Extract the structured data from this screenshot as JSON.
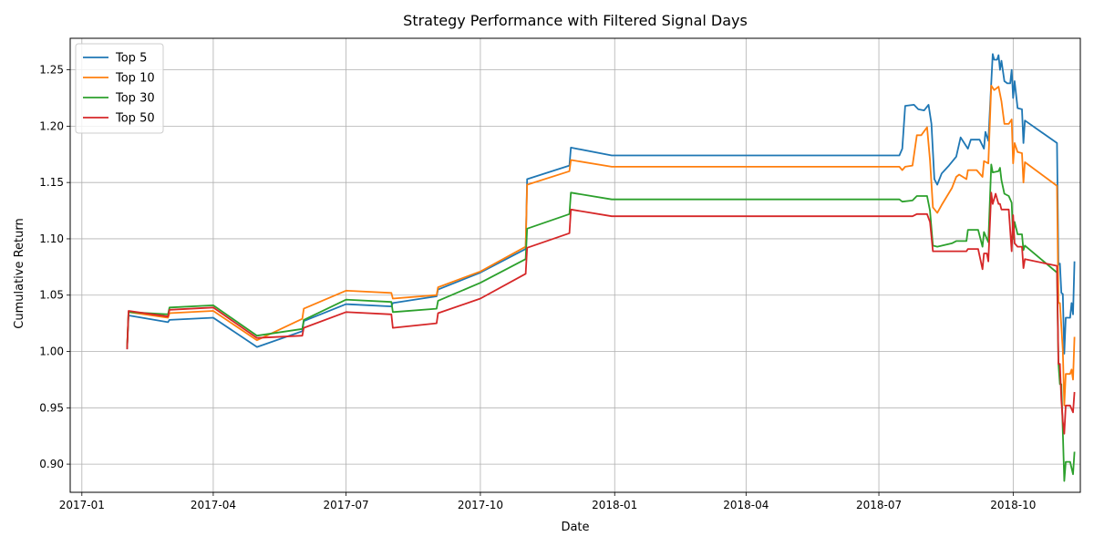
{
  "chart_data": {
    "type": "line",
    "title": "Strategy Performance with Filtered Signal Days",
    "xlabel": "Date",
    "ylabel": "Cumulative Return",
    "xlim": [
      "2016-12-24",
      "2018-11-16"
    ],
    "ylim": [
      0.875,
      1.278
    ],
    "grid": true,
    "legend_position": "top-left",
    "x_ticks": [
      "2017-01",
      "2017-04",
      "2017-07",
      "2017-10",
      "2018-01",
      "2018-04",
      "2018-07",
      "2018-10"
    ],
    "y_ticks": [
      0.9,
      0.95,
      1.0,
      1.05,
      1.1,
      1.15,
      1.2,
      1.25
    ],
    "series": [
      {
        "name": "Top 5",
        "color": "#1f77b4",
        "points": [
          [
            "2017-02-01",
            1.002
          ],
          [
            "2017-02-02",
            1.032
          ],
          [
            "2017-03-01",
            1.026
          ],
          [
            "2017-03-02",
            1.028
          ],
          [
            "2017-04-01",
            1.03
          ],
          [
            "2017-05-01",
            1.004
          ],
          [
            "2017-06-01",
            1.018
          ],
          [
            "2017-06-02",
            1.027
          ],
          [
            "2017-07-01",
            1.042
          ],
          [
            "2017-08-01",
            1.04
          ],
          [
            "2017-08-02",
            1.043
          ],
          [
            "2017-09-01",
            1.049
          ],
          [
            "2017-09-02",
            1.055
          ],
          [
            "2017-10-01",
            1.07
          ],
          [
            "2017-11-01",
            1.091
          ],
          [
            "2017-11-02",
            1.153
          ],
          [
            "2017-12-01",
            1.165
          ],
          [
            "2017-12-02",
            1.181
          ],
          [
            "2017-12-30",
            1.174
          ],
          [
            "2018-07-15",
            1.174
          ],
          [
            "2018-07-17",
            1.18
          ],
          [
            "2018-07-19",
            1.218
          ],
          [
            "2018-07-25",
            1.219
          ],
          [
            "2018-07-28",
            1.215
          ],
          [
            "2018-08-01",
            1.214
          ],
          [
            "2018-08-04",
            1.219
          ],
          [
            "2018-08-06",
            1.202
          ],
          [
            "2018-08-08",
            1.153
          ],
          [
            "2018-08-10",
            1.148
          ],
          [
            "2018-08-13",
            1.158
          ],
          [
            "2018-08-18",
            1.165
          ],
          [
            "2018-08-23",
            1.173
          ],
          [
            "2018-08-26",
            1.19
          ],
          [
            "2018-08-31",
            1.18
          ],
          [
            "2018-09-02",
            1.188
          ],
          [
            "2018-09-08",
            1.188
          ],
          [
            "2018-09-11",
            1.18
          ],
          [
            "2018-09-12",
            1.195
          ],
          [
            "2018-09-14",
            1.187
          ],
          [
            "2018-09-17",
            1.264
          ],
          [
            "2018-09-18",
            1.259
          ],
          [
            "2018-09-20",
            1.259
          ],
          [
            "2018-09-21",
            1.263
          ],
          [
            "2018-09-22",
            1.25
          ],
          [
            "2018-09-23",
            1.258
          ],
          [
            "2018-09-25",
            1.24
          ],
          [
            "2018-09-27",
            1.238
          ],
          [
            "2018-09-29",
            1.238
          ],
          [
            "2018-09-30",
            1.25
          ],
          [
            "2018-10-01",
            1.225
          ],
          [
            "2018-10-02",
            1.24
          ],
          [
            "2018-10-04",
            1.216
          ],
          [
            "2018-10-07",
            1.215
          ],
          [
            "2018-10-08",
            1.185
          ],
          [
            "2018-10-09",
            1.205
          ],
          [
            "2018-10-31",
            1.185
          ],
          [
            "2018-11-01",
            1.077
          ],
          [
            "2018-11-02",
            1.078
          ],
          [
            "2018-11-03",
            1.052
          ],
          [
            "2018-11-04",
            1.051
          ],
          [
            "2018-11-05",
            0.998
          ],
          [
            "2018-11-06",
            1.03
          ],
          [
            "2018-11-09",
            1.03
          ],
          [
            "2018-11-10",
            1.043
          ],
          [
            "2018-11-11",
            1.033
          ],
          [
            "2018-11-12",
            1.08
          ]
        ]
      },
      {
        "name": "Top 10",
        "color": "#ff7f0e",
        "points": [
          [
            "2017-02-01",
            1.003
          ],
          [
            "2017-02-02",
            1.035
          ],
          [
            "2017-03-01",
            1.03
          ],
          [
            "2017-03-02",
            1.034
          ],
          [
            "2017-04-01",
            1.036
          ],
          [
            "2017-05-01",
            1.01
          ],
          [
            "2017-06-01",
            1.029
          ],
          [
            "2017-06-02",
            1.038
          ],
          [
            "2017-07-01",
            1.054
          ],
          [
            "2017-08-01",
            1.052
          ],
          [
            "2017-08-02",
            1.047
          ],
          [
            "2017-09-01",
            1.05
          ],
          [
            "2017-09-02",
            1.057
          ],
          [
            "2017-10-01",
            1.071
          ],
          [
            "2017-11-01",
            1.093
          ],
          [
            "2017-11-02",
            1.148
          ],
          [
            "2017-12-01",
            1.16
          ],
          [
            "2017-12-02",
            1.17
          ],
          [
            "2017-12-30",
            1.164
          ],
          [
            "2018-07-15",
            1.164
          ],
          [
            "2018-07-17",
            1.161
          ],
          [
            "2018-07-19",
            1.164
          ],
          [
            "2018-07-24",
            1.165
          ],
          [
            "2018-07-27",
            1.192
          ],
          [
            "2018-07-30",
            1.192
          ],
          [
            "2018-08-03",
            1.199
          ],
          [
            "2018-08-05",
            1.17
          ],
          [
            "2018-08-07",
            1.128
          ],
          [
            "2018-08-10",
            1.123
          ],
          [
            "2018-08-13",
            1.13
          ],
          [
            "2018-08-20",
            1.145
          ],
          [
            "2018-08-23",
            1.155
          ],
          [
            "2018-08-25",
            1.157
          ],
          [
            "2018-08-30",
            1.153
          ],
          [
            "2018-08-31",
            1.161
          ],
          [
            "2018-09-06",
            1.161
          ],
          [
            "2018-09-10",
            1.155
          ],
          [
            "2018-09-11",
            1.169
          ],
          [
            "2018-09-14",
            1.167
          ],
          [
            "2018-09-16",
            1.236
          ],
          [
            "2018-09-18",
            1.232
          ],
          [
            "2018-09-21",
            1.235
          ],
          [
            "2018-09-23",
            1.222
          ],
          [
            "2018-09-25",
            1.202
          ],
          [
            "2018-09-28",
            1.202
          ],
          [
            "2018-09-30",
            1.206
          ],
          [
            "2018-10-01",
            1.167
          ],
          [
            "2018-10-02",
            1.185
          ],
          [
            "2018-10-04",
            1.177
          ],
          [
            "2018-10-07",
            1.176
          ],
          [
            "2018-10-08",
            1.15
          ],
          [
            "2018-10-09",
            1.168
          ],
          [
            "2018-10-31",
            1.147
          ],
          [
            "2018-11-01",
            1.043
          ],
          [
            "2018-11-02",
            1.043
          ],
          [
            "2018-11-04",
            1.001
          ],
          [
            "2018-11-05",
            0.952
          ],
          [
            "2018-11-06",
            0.98
          ],
          [
            "2018-11-09",
            0.98
          ],
          [
            "2018-11-10",
            0.984
          ],
          [
            "2018-11-11",
            0.975
          ],
          [
            "2018-11-12",
            1.013
          ]
        ]
      },
      {
        "name": "Top 30",
        "color": "#2ca02c",
        "points": [
          [
            "2017-02-01",
            1.003
          ],
          [
            "2017-02-02",
            1.035
          ],
          [
            "2017-03-01",
            1.033
          ],
          [
            "2017-03-02",
            1.039
          ],
          [
            "2017-04-01",
            1.041
          ],
          [
            "2017-05-01",
            1.014
          ],
          [
            "2017-06-01",
            1.02
          ],
          [
            "2017-06-02",
            1.028
          ],
          [
            "2017-07-01",
            1.046
          ],
          [
            "2017-08-01",
            1.044
          ],
          [
            "2017-08-02",
            1.035
          ],
          [
            "2017-09-01",
            1.038
          ],
          [
            "2017-09-02",
            1.045
          ],
          [
            "2017-10-01",
            1.061
          ],
          [
            "2017-11-01",
            1.082
          ],
          [
            "2017-11-02",
            1.109
          ],
          [
            "2017-12-01",
            1.122
          ],
          [
            "2017-12-02",
            1.141
          ],
          [
            "2017-12-30",
            1.135
          ],
          [
            "2018-07-15",
            1.135
          ],
          [
            "2018-07-17",
            1.133
          ],
          [
            "2018-07-24",
            1.134
          ],
          [
            "2018-07-27",
            1.138
          ],
          [
            "2018-08-03",
            1.138
          ],
          [
            "2018-08-05",
            1.125
          ],
          [
            "2018-08-07",
            1.094
          ],
          [
            "2018-08-10",
            1.093
          ],
          [
            "2018-08-20",
            1.096
          ],
          [
            "2018-08-23",
            1.098
          ],
          [
            "2018-08-30",
            1.098
          ],
          [
            "2018-08-31",
            1.108
          ],
          [
            "2018-09-07",
            1.108
          ],
          [
            "2018-09-10",
            1.093
          ],
          [
            "2018-09-11",
            1.106
          ],
          [
            "2018-09-14",
            1.097
          ],
          [
            "2018-09-16",
            1.166
          ],
          [
            "2018-09-17",
            1.159
          ],
          [
            "2018-09-21",
            1.16
          ],
          [
            "2018-09-22",
            1.163
          ],
          [
            "2018-09-23",
            1.152
          ],
          [
            "2018-09-25",
            1.14
          ],
          [
            "2018-09-28",
            1.138
          ],
          [
            "2018-09-30",
            1.132
          ],
          [
            "2018-10-01",
            1.1
          ],
          [
            "2018-10-02",
            1.115
          ],
          [
            "2018-10-04",
            1.104
          ],
          [
            "2018-10-07",
            1.104
          ],
          [
            "2018-10-08",
            1.09
          ],
          [
            "2018-10-09",
            1.094
          ],
          [
            "2018-10-31",
            1.07
          ],
          [
            "2018-11-01",
            0.989
          ],
          [
            "2018-11-02",
            0.971
          ],
          [
            "2018-11-03",
            0.971
          ],
          [
            "2018-11-04",
            0.929
          ],
          [
            "2018-11-05",
            0.885
          ],
          [
            "2018-11-06",
            0.902
          ],
          [
            "2018-11-09",
            0.902
          ],
          [
            "2018-11-11",
            0.891
          ],
          [
            "2018-11-12",
            0.911
          ]
        ]
      },
      {
        "name": "Top 50",
        "color": "#d62728",
        "points": [
          [
            "2017-02-01",
            1.002
          ],
          [
            "2017-02-02",
            1.036
          ],
          [
            "2017-03-01",
            1.031
          ],
          [
            "2017-03-02",
            1.037
          ],
          [
            "2017-04-01",
            1.039
          ],
          [
            "2017-05-01",
            1.012
          ],
          [
            "2017-06-01",
            1.014
          ],
          [
            "2017-06-02",
            1.021
          ],
          [
            "2017-07-01",
            1.035
          ],
          [
            "2017-08-01",
            1.033
          ],
          [
            "2017-08-02",
            1.021
          ],
          [
            "2017-09-01",
            1.025
          ],
          [
            "2017-09-02",
            1.034
          ],
          [
            "2017-10-01",
            1.047
          ],
          [
            "2017-11-01",
            1.069
          ],
          [
            "2017-11-02",
            1.092
          ],
          [
            "2017-12-01",
            1.105
          ],
          [
            "2017-12-02",
            1.126
          ],
          [
            "2017-12-30",
            1.12
          ],
          [
            "2018-07-15",
            1.12
          ],
          [
            "2018-07-24",
            1.12
          ],
          [
            "2018-07-27",
            1.122
          ],
          [
            "2018-08-03",
            1.122
          ],
          [
            "2018-08-05",
            1.115
          ],
          [
            "2018-08-07",
            1.089
          ],
          [
            "2018-08-30",
            1.089
          ],
          [
            "2018-08-31",
            1.091
          ],
          [
            "2018-09-07",
            1.091
          ],
          [
            "2018-09-10",
            1.073
          ],
          [
            "2018-09-11",
            1.087
          ],
          [
            "2018-09-13",
            1.087
          ],
          [
            "2018-09-14",
            1.08
          ],
          [
            "2018-09-16",
            1.141
          ],
          [
            "2018-09-17",
            1.131
          ],
          [
            "2018-09-19",
            1.14
          ],
          [
            "2018-09-21",
            1.131
          ],
          [
            "2018-09-22",
            1.131
          ],
          [
            "2018-09-23",
            1.126
          ],
          [
            "2018-09-28",
            1.126
          ],
          [
            "2018-09-30",
            1.089
          ],
          [
            "2018-10-01",
            1.121
          ],
          [
            "2018-10-02",
            1.096
          ],
          [
            "2018-10-04",
            1.093
          ],
          [
            "2018-10-07",
            1.093
          ],
          [
            "2018-10-08",
            1.074
          ],
          [
            "2018-10-09",
            1.082
          ],
          [
            "2018-10-31",
            1.076
          ],
          [
            "2018-11-01",
            0.989
          ],
          [
            "2018-11-02",
            0.989
          ],
          [
            "2018-11-03",
            0.957
          ],
          [
            "2018-11-04",
            0.938
          ],
          [
            "2018-11-05",
            0.927
          ],
          [
            "2018-11-06",
            0.952
          ],
          [
            "2018-11-09",
            0.952
          ],
          [
            "2018-11-11",
            0.946
          ],
          [
            "2018-11-12",
            0.964
          ]
        ]
      }
    ]
  }
}
